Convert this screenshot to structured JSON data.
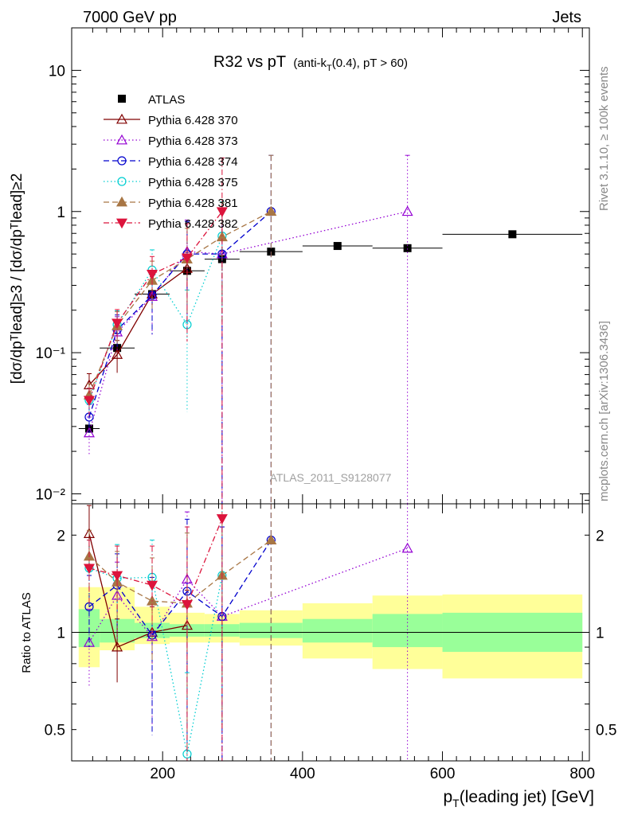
{
  "header": {
    "left": "7000 GeV pp",
    "right": "Jets"
  },
  "side_labels": {
    "rivet": "Rivet 3.1.10, ≥ 100k events",
    "mcplots": "mcplots.cern.ch [arXiv:1306.3436]"
  },
  "watermark": "ATLAS_2011_S9128077",
  "main_title": {
    "main": "R32 vs pT",
    "detail": "(anti-k",
    "sub": "T",
    "tail": "(0.4), pT > 60)"
  },
  "ylabel_main": "[dσ/dpᵀlead]≥3 / [dσ/dpᵀlead]≥2",
  "ylabel_ratio": "Ratio to ATLAS",
  "xlabel": {
    "p": "p",
    "sub": "T",
    "rest": "(leading jet) [GeV]"
  },
  "chart_data": [
    {
      "type": "scatter",
      "panel": "main",
      "yscale": "log",
      "xlim": [
        70,
        810
      ],
      "ylim": [
        0.0085,
        20
      ],
      "yticks": [
        {
          "v": 0.01,
          "label": "10⁻²"
        },
        {
          "v": 0.1,
          "label": "10⁻¹"
        },
        {
          "v": 1,
          "label": "1"
        },
        {
          "v": 10,
          "label": "10"
        }
      ],
      "xticks": [
        200,
        400,
        600,
        800
      ],
      "legend_position": "top-left",
      "data": {
        "name": "ATLAS",
        "color": "#000000",
        "x": [
          95,
          135,
          185,
          235,
          285,
          355,
          450,
          550,
          700
        ],
        "y": [
          0.029,
          0.108,
          0.26,
          0.38,
          0.46,
          0.52,
          0.57,
          0.55,
          0.69
        ],
        "xerr": [
          15,
          25,
          25,
          25,
          25,
          45,
          50,
          50,
          100
        ]
      },
      "series": [
        {
          "name": "Pythia 6.428 370",
          "color": "#800000",
          "marker": "tri-up-open",
          "dash": "",
          "x": [
            95,
            135,
            185,
            235
          ],
          "y": [
            0.059,
            0.097,
            0.26,
            0.395
          ],
          "err": [
            0.012,
            0.025,
            0.05,
            0.12
          ]
        },
        {
          "name": "Pythia 6.428 373",
          "color": "#9400d3",
          "marker": "tri-up-open",
          "dash": "1.5,3",
          "x": [
            95,
            135,
            185,
            235,
            285,
            550
          ],
          "y": [
            0.027,
            0.14,
            0.25,
            0.52,
            0.5,
            1.0
          ],
          "err": [
            0.008,
            0.04,
            0.12,
            0.35,
            0.5,
            1.5
          ]
        },
        {
          "name": "Pythia 6.428 374",
          "color": "#0000cd",
          "marker": "circle-open",
          "dash": "7,4",
          "x": [
            95,
            135,
            185,
            235,
            285,
            355
          ],
          "y": [
            0.035,
            0.145,
            0.255,
            0.5,
            0.5,
            1.0
          ],
          "err": [
            0.008,
            0.04,
            0.12,
            0.35,
            0.5,
            1.5
          ]
        },
        {
          "name": "Pythia 6.428 375",
          "color": "#00ced1",
          "marker": "circle-open",
          "dash": "1.5,3",
          "x": [
            95,
            135,
            185,
            235,
            285
          ],
          "y": [
            0.046,
            0.158,
            0.385,
            0.158,
            0.67
          ],
          "err": [
            0.01,
            0.04,
            0.15,
            0.12,
            0.5
          ]
        },
        {
          "name": "Pythia 6.428 381",
          "color": "#a87645",
          "marker": "tri-up-filled",
          "dash": "7,4",
          "x": [
            95,
            135,
            185,
            235,
            285,
            355
          ],
          "y": [
            0.05,
            0.155,
            0.325,
            0.46,
            0.66,
            1.0
          ],
          "err": [
            0.01,
            0.04,
            0.12,
            0.3,
            0.5,
            1.5
          ]
        },
        {
          "name": "Pythia 6.428 382",
          "color": "#dc143c",
          "marker": "tri-down-filled",
          "dash": "7,3,1.5,3",
          "x": [
            95,
            135,
            185,
            235,
            285
          ],
          "y": [
            0.046,
            0.162,
            0.36,
            0.47,
            1.0
          ],
          "err": [
            0.01,
            0.04,
            0.12,
            0.35,
            1.4
          ]
        }
      ]
    },
    {
      "type": "scatter",
      "panel": "ratio",
      "yscale": "log",
      "xlim": [
        70,
        810
      ],
      "ylim": [
        0.4,
        2.5
      ],
      "yticks": [
        {
          "v": 0.5,
          "label": "0.5"
        },
        {
          "v": 1,
          "label": "1"
        },
        {
          "v": 2,
          "label": "2"
        }
      ],
      "xticks": [
        200,
        400,
        600,
        800
      ],
      "bands": [
        {
          "xlo": 80,
          "xhi": 110,
          "inner": [
            0.9,
            1.18
          ],
          "outer": [
            0.78,
            1.38
          ]
        },
        {
          "xlo": 110,
          "xhi": 160,
          "inner": [
            0.93,
            1.1
          ],
          "outer": [
            0.88,
            1.38
          ]
        },
        {
          "xlo": 160,
          "xhi": 210,
          "inner": [
            0.96,
            1.07
          ],
          "outer": [
            0.92,
            1.2
          ]
        },
        {
          "xlo": 210,
          "xhi": 260,
          "inner": [
            0.97,
            1.06
          ],
          "outer": [
            0.93,
            1.15
          ]
        },
        {
          "xlo": 260,
          "xhi": 310,
          "inner": [
            0.97,
            1.06
          ],
          "outer": [
            0.93,
            1.14
          ]
        },
        {
          "xlo": 310,
          "xhi": 400,
          "inner": [
            0.96,
            1.07
          ],
          "outer": [
            0.91,
            1.17
          ]
        },
        {
          "xlo": 400,
          "xhi": 500,
          "inner": [
            0.93,
            1.1
          ],
          "outer": [
            0.83,
            1.23
          ]
        },
        {
          "xlo": 500,
          "xhi": 600,
          "inner": [
            0.9,
            1.14
          ],
          "outer": [
            0.77,
            1.3
          ]
        },
        {
          "xlo": 600,
          "xhi": 800,
          "inner": [
            0.87,
            1.15
          ],
          "outer": [
            0.72,
            1.31
          ]
        }
      ],
      "series": [
        {
          "name": "Pythia 6.428 370",
          "x": [
            95,
            135,
            185,
            235
          ],
          "y": [
            2.02,
            0.9,
            1.0,
            1.05
          ],
          "err": [
            0.45,
            0.2,
            0.2,
            0.3
          ]
        },
        {
          "name": "Pythia 6.428 373",
          "x": [
            95,
            135,
            185,
            235,
            285,
            550
          ],
          "y": [
            0.93,
            1.3,
            0.97,
            1.46,
            1.12,
            1.82
          ],
          "err": [
            0.25,
            0.35,
            0.45,
            0.9,
            1.0,
            2.5
          ]
        },
        {
          "name": "Pythia 6.428 374",
          "x": [
            95,
            135,
            185,
            235,
            285,
            355
          ],
          "y": [
            1.2,
            1.4,
            0.98,
            1.34,
            1.12,
            1.93
          ],
          "err": [
            0.3,
            0.35,
            0.5,
            0.9,
            1.0,
            2.5
          ]
        },
        {
          "name": "Pythia 6.428 375",
          "x": [
            95,
            135,
            185,
            235,
            285
          ],
          "y": [
            1.58,
            1.47,
            1.48,
            0.42,
            1.5
          ],
          "err": [
            0.35,
            0.4,
            0.45,
            0.33,
            1.0
          ]
        },
        {
          "name": "Pythia 6.428 381",
          "x": [
            95,
            135,
            185,
            235,
            285,
            355
          ],
          "y": [
            1.72,
            1.43,
            1.25,
            1.23,
            1.5,
            1.93
          ],
          "err": [
            0.35,
            0.35,
            0.45,
            0.8,
            1.0,
            2.5
          ]
        },
        {
          "name": "Pythia 6.428 382",
          "x": [
            95,
            135,
            185,
            235,
            285
          ],
          "y": [
            1.58,
            1.5,
            1.4,
            1.22,
            2.25
          ],
          "err": [
            0.35,
            0.35,
            0.45,
            0.9,
            2.0
          ]
        }
      ]
    }
  ]
}
